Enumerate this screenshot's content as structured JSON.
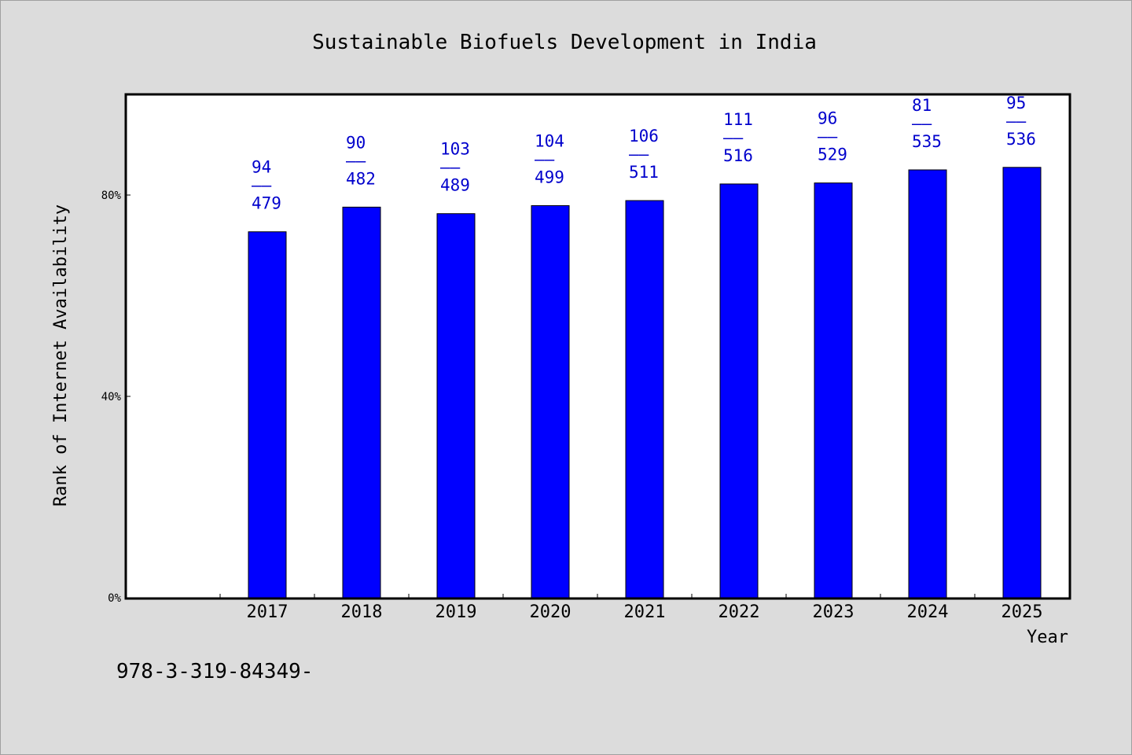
{
  "chart_data": {
    "type": "bar",
    "title": "Sustainable Biofuels Development in India",
    "xlabel": "Year",
    "ylabel": "Rank of Internet Availability",
    "categories": [
      "2017",
      "2018",
      "2019",
      "2020",
      "2021",
      "2022",
      "2023",
      "2024",
      "2025"
    ],
    "values": [
      0.727,
      0.776,
      0.763,
      0.779,
      0.789,
      0.822,
      0.824,
      0.85,
      0.855
    ],
    "data_labels": [
      {
        "top": "94",
        "sep": "——",
        "bottom": "479"
      },
      {
        "top": "90",
        "sep": "——",
        "bottom": "482"
      },
      {
        "top": "103",
        "sep": "——",
        "bottom": "489"
      },
      {
        "top": "104",
        "sep": "——",
        "bottom": "499"
      },
      {
        "top": "106",
        "sep": "——",
        "bottom": "511"
      },
      {
        "top": "111",
        "sep": "——",
        "bottom": "516"
      },
      {
        "top": "96",
        "sep": "——",
        "bottom": "529"
      },
      {
        "top": "81",
        "sep": "——",
        "bottom": "535"
      },
      {
        "top": "95",
        "sep": "——",
        "bottom": "536"
      }
    ],
    "yticks": [
      {
        "value": 0.0,
        "label": "0%"
      },
      {
        "value": 0.4,
        "label": "40%"
      },
      {
        "value": 0.8,
        "label": "80%"
      }
    ],
    "ylim": [
      0,
      1.0
    ],
    "grid": false,
    "bar_color": "#0000ff",
    "label_color": "#0000cc"
  },
  "footer_code": "978-3-319-84349-"
}
